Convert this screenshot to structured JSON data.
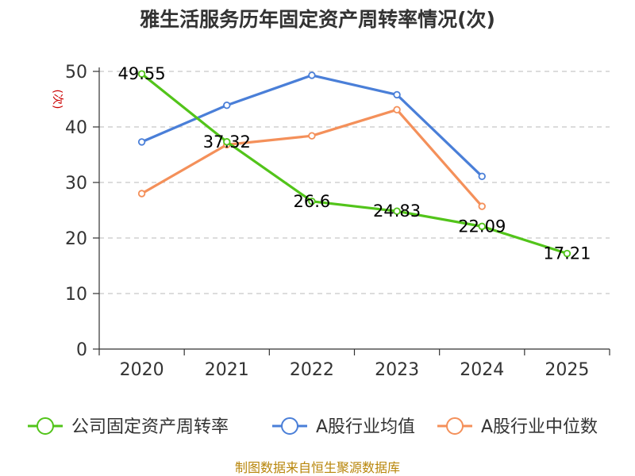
{
  "chart_data": {
    "type": "line",
    "title": "雅生活服务历年固定资产周转率情况(次)",
    "ylabel": "(次)",
    "xlabel": "",
    "categories": [
      "2020",
      "2021",
      "2022",
      "2023",
      "2024",
      "2025"
    ],
    "ylim": [
      0,
      50
    ],
    "yticks": [
      "0",
      "10",
      "20",
      "30",
      "40",
      "50"
    ],
    "grid": true,
    "legend_position": "bottom",
    "series": [
      {
        "name": "公司固定资产周转率",
        "color": "#52c41a",
        "values": [
          49.55,
          37.32,
          26.6,
          24.83,
          22.09,
          17.21
        ],
        "labels": [
          "49.55",
          "37.32",
          "26.6",
          "24.83",
          "22.09",
          "17.21"
        ]
      },
      {
        "name": "A股行业均值",
        "color": "#4a7fd8",
        "values": [
          37.3,
          43.9,
          49.3,
          45.8,
          31.1,
          null
        ]
      },
      {
        "name": "A股行业中位数",
        "color": "#f4905a",
        "values": [
          28.0,
          36.8,
          38.4,
          43.1,
          25.7,
          null
        ]
      }
    ]
  },
  "source": "制图数据来自恒生聚源数据库"
}
